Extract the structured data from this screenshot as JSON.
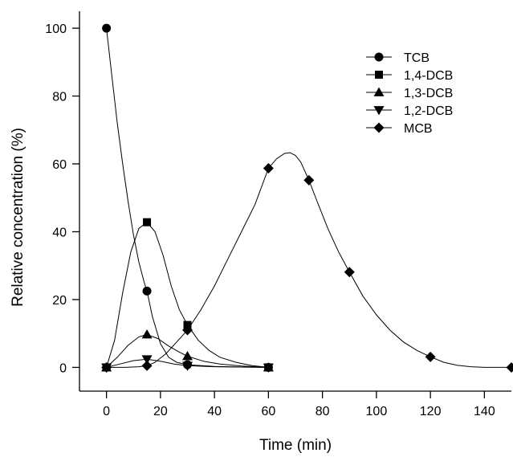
{
  "chart_data": {
    "type": "line",
    "title": "",
    "xlabel": "Time (min)",
    "ylabel": "Relative concentration (%)",
    "xlim": [
      -10,
      150
    ],
    "ylim": [
      -7,
      105
    ],
    "x_ticks": [
      0,
      20,
      40,
      60,
      80,
      100,
      120,
      140
    ],
    "y_ticks": [
      0,
      20,
      40,
      60,
      80,
      100
    ],
    "legend_position": "top-right",
    "grid": false,
    "series": [
      {
        "name": "TCB",
        "marker": "circle",
        "points": [
          [
            0,
            100
          ],
          [
            15,
            22.5
          ],
          [
            30,
            0.8
          ],
          [
            60,
            0
          ]
        ],
        "curve": [
          [
            0,
            100
          ],
          [
            2,
            86
          ],
          [
            4,
            72
          ],
          [
            6,
            60
          ],
          [
            8,
            49
          ],
          [
            10,
            39
          ],
          [
            12,
            31
          ],
          [
            14,
            25
          ],
          [
            15,
            22.5
          ],
          [
            17,
            15
          ],
          [
            20,
            7
          ],
          [
            23,
            3
          ],
          [
            26,
            1.5
          ],
          [
            30,
            0.8
          ],
          [
            40,
            0.3
          ],
          [
            50,
            0.1
          ],
          [
            60,
            0
          ]
        ]
      },
      {
        "name": "1,4-DCB",
        "marker": "square",
        "points": [
          [
            0,
            0
          ],
          [
            15,
            42.8
          ],
          [
            30,
            12.5
          ],
          [
            60,
            0
          ]
        ],
        "curve": [
          [
            0,
            0
          ],
          [
            3,
            8
          ],
          [
            6,
            22
          ],
          [
            9,
            34
          ],
          [
            12,
            41
          ],
          [
            15,
            42.8
          ],
          [
            18,
            40
          ],
          [
            21,
            33
          ],
          [
            24,
            24
          ],
          [
            27,
            17
          ],
          [
            30,
            12.5
          ],
          [
            34,
            8
          ],
          [
            38,
            5
          ],
          [
            42,
            3
          ],
          [
            48,
            1.5
          ],
          [
            54,
            0.5
          ],
          [
            60,
            0
          ]
        ]
      },
      {
        "name": "1,3-DCB",
        "marker": "triangle-up",
        "points": [
          [
            0,
            0
          ],
          [
            15,
            9.7
          ],
          [
            30,
            3.3
          ],
          [
            60,
            0
          ]
        ],
        "curve": [
          [
            0,
            0
          ],
          [
            4,
            3
          ],
          [
            8,
            6.5
          ],
          [
            12,
            9
          ],
          [
            15,
            9.7
          ],
          [
            19,
            8.5
          ],
          [
            23,
            6.3
          ],
          [
            27,
            4.5
          ],
          [
            30,
            3.3
          ],
          [
            36,
            1.8
          ],
          [
            42,
            1
          ],
          [
            50,
            0.4
          ],
          [
            60,
            0
          ]
        ]
      },
      {
        "name": "1,2-DCB",
        "marker": "triangle-down",
        "points": [
          [
            0,
            0
          ],
          [
            15,
            2.4
          ],
          [
            30,
            0.5
          ],
          [
            60,
            0
          ]
        ],
        "curve": [
          [
            0,
            0
          ],
          [
            5,
            1
          ],
          [
            10,
            2
          ],
          [
            15,
            2.4
          ],
          [
            20,
            1.8
          ],
          [
            25,
            1
          ],
          [
            30,
            0.5
          ],
          [
            40,
            0.2
          ],
          [
            50,
            0.1
          ],
          [
            60,
            0
          ]
        ]
      },
      {
        "name": "MCB",
        "marker": "diamond",
        "points": [
          [
            0,
            0
          ],
          [
            15,
            0.5
          ],
          [
            30,
            11
          ],
          [
            60,
            58.7
          ],
          [
            75,
            55.2
          ],
          [
            90,
            28.1
          ],
          [
            120,
            3.1
          ],
          [
            150,
            0
          ]
        ],
        "curve": [
          [
            0,
            0
          ],
          [
            7,
            0
          ],
          [
            12,
            0.2
          ],
          [
            15,
            0.5
          ],
          [
            18,
            1.5
          ],
          [
            22,
            4
          ],
          [
            26,
            7.5
          ],
          [
            30,
            11
          ],
          [
            35,
            17
          ],
          [
            40,
            24
          ],
          [
            45,
            32
          ],
          [
            50,
            40
          ],
          [
            55,
            48
          ],
          [
            60,
            58.7
          ],
          [
            63,
            61.5
          ],
          [
            66,
            63.1
          ],
          [
            68,
            63.3
          ],
          [
            70,
            62.5
          ],
          [
            72,
            60.5
          ],
          [
            75,
            55.2
          ],
          [
            78,
            49
          ],
          [
            82,
            41
          ],
          [
            86,
            34
          ],
          [
            90,
            28.1
          ],
          [
            95,
            21
          ],
          [
            100,
            15.5
          ],
          [
            105,
            11
          ],
          [
            110,
            7.5
          ],
          [
            115,
            5
          ],
          [
            120,
            3.1
          ],
          [
            125,
            1.5
          ],
          [
            130,
            0.6
          ],
          [
            135,
            0.2
          ],
          [
            140,
            0
          ],
          [
            150,
            0
          ]
        ]
      }
    ]
  }
}
